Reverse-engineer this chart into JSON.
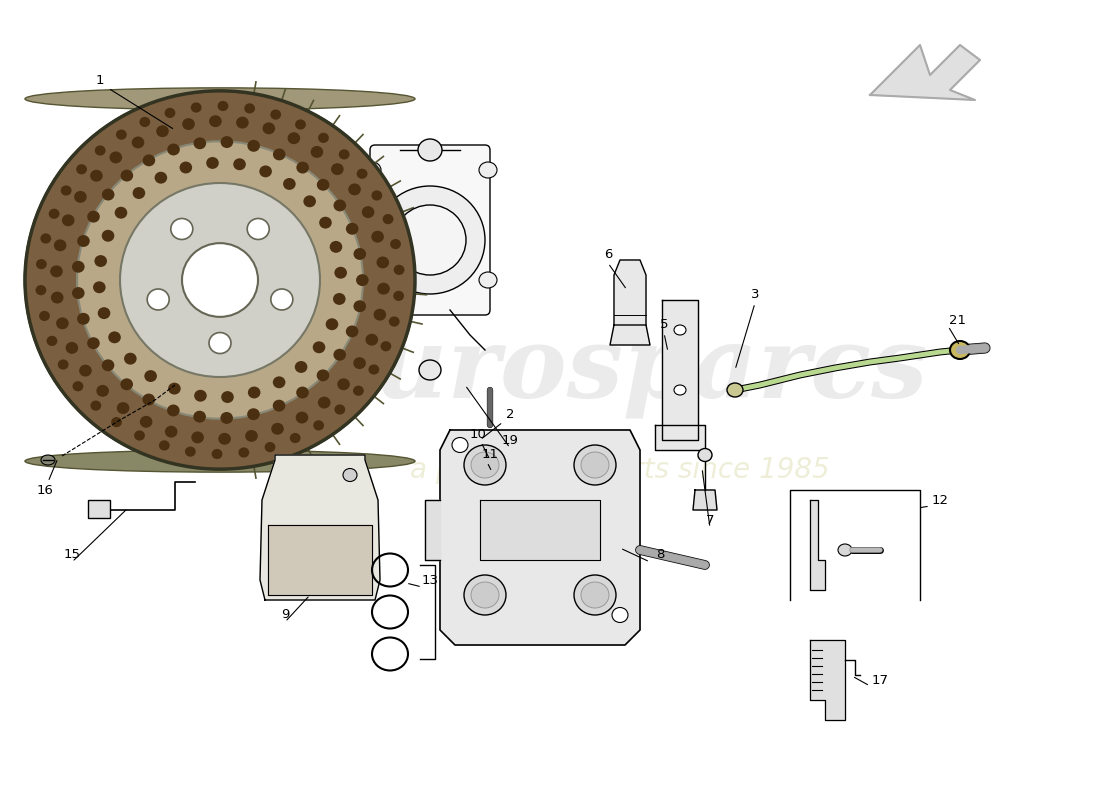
{
  "bg_color": "#ffffff",
  "disc_face_color": "#7a6040",
  "disc_inner_color": "#b8a888",
  "disc_hub_color": "#d0cfc8",
  "disc_edge_color": "#555533",
  "disc_hole_color": "#4a3010",
  "caliper_color": "#e8e8e8",
  "knuckle_color": "#f0f0f0",
  "pad_color": "#e0d8c8",
  "line_color": "#000000",
  "hose_color": "#90b890",
  "watermark_arrow_color": "#cccccc"
}
